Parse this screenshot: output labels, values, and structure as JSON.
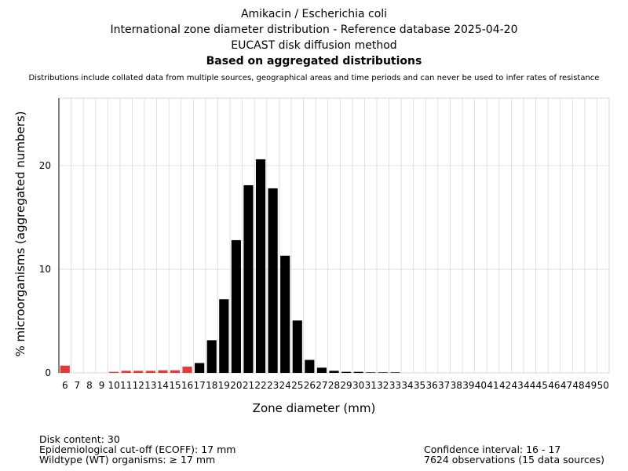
{
  "header": {
    "title": "Amikacin / Escherichia coli",
    "line2": "International zone diameter distribution - Reference database 2025-04-20",
    "line3": "EUCAST disk diffusion method",
    "line4": "Based on aggregated distributions",
    "note": "Distributions include collated data from multiple sources, geographical areas and time periods and can never be used to infer rates of resistance"
  },
  "footer": {
    "disk_content": "Disk content: 30",
    "ecoff": "Epidemiological cut-off (ECOFF): 17 mm",
    "wildtype": "Wildtype (WT) organisms: ≥ 17 mm",
    "confidence": "Confidence interval: 16 - 17",
    "observations": "7624 observations (15 data sources)"
  },
  "colors": {
    "below_ecoff": "#e03a3a",
    "wildtype": "#000000",
    "grid": "#d9d9d9"
  },
  "chart_data": {
    "type": "bar",
    "xlabel": "Zone diameter (mm)",
    "ylabel": "% microorganisms (aggregated numbers)",
    "ylim": [
      0,
      26.5
    ],
    "yticks": [
      0,
      10,
      20
    ],
    "grid": true,
    "ecoff": 17,
    "categories": [
      6,
      7,
      8,
      9,
      10,
      11,
      12,
      13,
      14,
      15,
      16,
      17,
      18,
      19,
      20,
      21,
      22,
      23,
      24,
      25,
      26,
      27,
      28,
      29,
      30,
      31,
      32,
      33,
      34,
      35,
      36,
      37,
      38,
      39,
      40,
      41,
      42,
      43,
      44,
      45,
      46,
      47,
      48,
      49,
      50
    ],
    "values": [
      0.7,
      0,
      0,
      0,
      0.1,
      0.2,
      0.2,
      0.2,
      0.25,
      0.25,
      0.6,
      0.95,
      3.15,
      7.1,
      12.8,
      18.1,
      20.6,
      17.8,
      11.3,
      5.05,
      1.25,
      0.5,
      0.2,
      0.1,
      0.1,
      0.05,
      0.05,
      0.05,
      0,
      0,
      0,
      0,
      0,
      0,
      0,
      0,
      0,
      0,
      0,
      0,
      0,
      0,
      0,
      0,
      0
    ]
  }
}
